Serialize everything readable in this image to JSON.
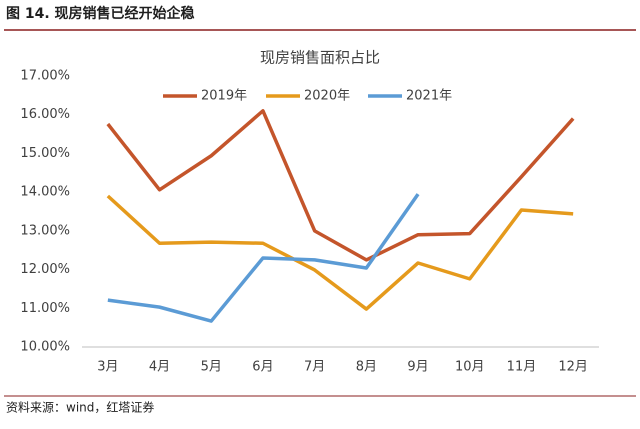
{
  "header": "图 14. 现房销售已经开始企稳",
  "source": "资料来源：wind，红塔证券",
  "chart_data": {
    "type": "line",
    "title": "现房销售面积占比",
    "categories": [
      "3月",
      "4月",
      "5月",
      "6月",
      "7月",
      "8月",
      "9月",
      "10月",
      "11月",
      "12月"
    ],
    "series": [
      {
        "name": "2019年",
        "color": "#c4552b",
        "values": [
          15.76,
          14.06,
          14.94,
          16.1,
          13.0,
          12.25,
          12.9,
          12.93,
          14.4,
          15.9
        ]
      },
      {
        "name": "2020年",
        "color": "#e59a1c",
        "values": [
          13.9,
          12.68,
          12.71,
          12.68,
          11.99,
          10.98,
          12.17,
          11.76,
          13.54,
          13.44
        ]
      },
      {
        "name": "2021年",
        "color": "#5b9bd5",
        "values": [
          11.21,
          11.03,
          10.67,
          12.3,
          12.25,
          12.04,
          13.95,
          null,
          null,
          null
        ]
      }
    ],
    "ylim": [
      10,
      17
    ],
    "yticks": [
      {
        "value": 10,
        "label": "10.00%"
      },
      {
        "value": 11,
        "label": "11.00%"
      },
      {
        "value": 12,
        "label": "12.00%"
      },
      {
        "value": 13,
        "label": "13.00%"
      },
      {
        "value": 14,
        "label": "14.00%"
      },
      {
        "value": 15,
        "label": "15.00%"
      },
      {
        "value": 16,
        "label": "16.00%"
      },
      {
        "value": 17,
        "label": "17.00%"
      }
    ],
    "grid": false,
    "legend": "top"
  }
}
